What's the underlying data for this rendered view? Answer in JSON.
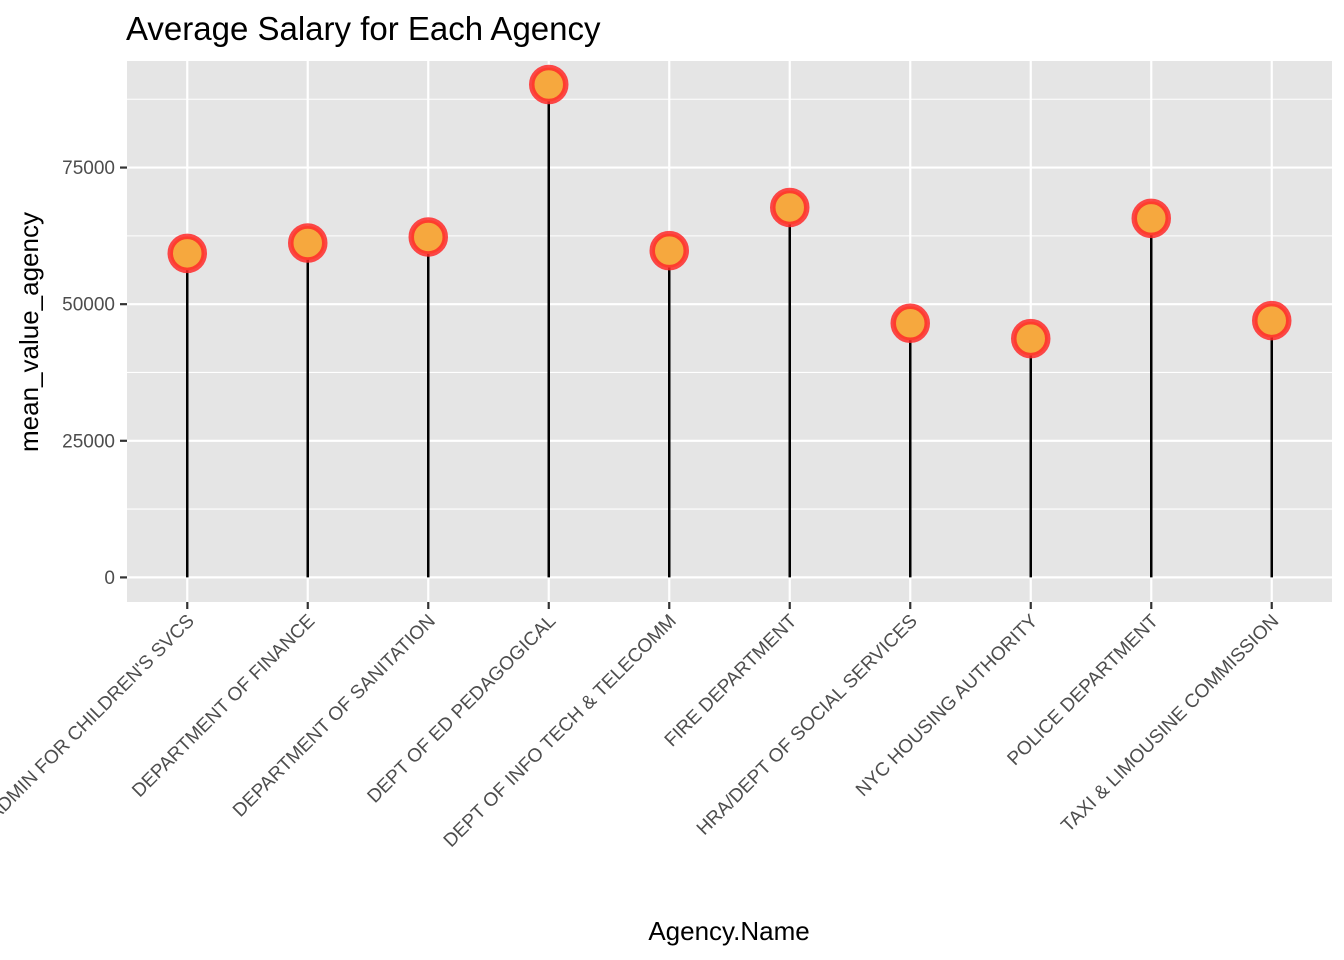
{
  "chart_data": {
    "type": "lollipop",
    "title": "Average Salary for Each Agency",
    "xlabel": "Agency.Name",
    "ylabel": "mean_value_agency",
    "ylim": [
      -4500,
      94500
    ],
    "yticks": [
      0,
      25000,
      50000,
      75000
    ],
    "ytick_labels": [
      "0",
      "25000",
      "50000",
      "75000"
    ],
    "categories": [
      "ADMIN FOR CHILDREN'S SVCS",
      "DEPARTMENT OF FINANCE",
      "DEPARTMENT OF SANITATION",
      "DEPT OF ED PEDAGOGICAL",
      "DEPT OF INFO TECH & TELECOMM",
      "FIRE DEPARTMENT",
      "HRA/DEPT OF SOCIAL SERVICES",
      "NYC HOUSING AUTHORITY",
      "POLICE DEPARTMENT",
      "TAXI & LIMOUSINE COMMISSION"
    ],
    "values": [
      59300,
      61200,
      62300,
      90200,
      59800,
      67700,
      46500,
      43700,
      65700,
      47000
    ],
    "grid": true,
    "legend": "none",
    "colors": {
      "panel": "#e5e5e5",
      "stem": "#000000",
      "point_fill": "#f6a83e",
      "point_outline": "#ff2a2a"
    }
  }
}
